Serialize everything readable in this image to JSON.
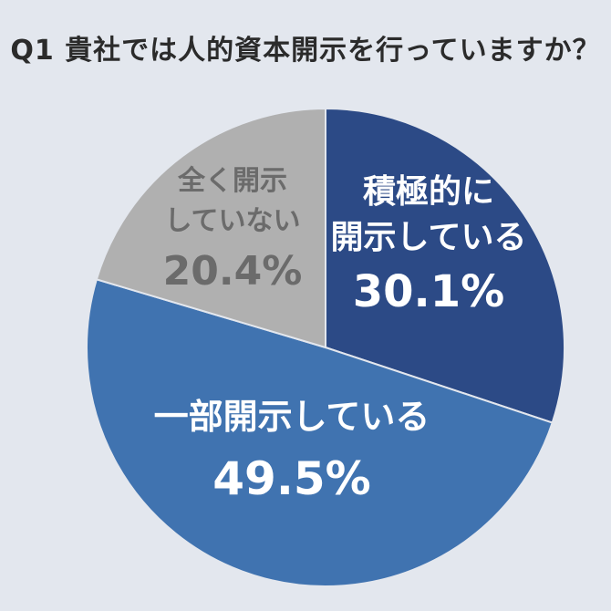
{
  "title": "Q1 貴社では人的資本開示を行っていますか？",
  "chart_data": {
    "type": "pie",
    "title": "Q1 貴社では人的資本開示を行っていますか？",
    "slices": [
      {
        "label_lines": [
          "積極的に",
          "開示している"
        ],
        "value": 30.1,
        "value_text": "30.1%",
        "color": "#2c4a86",
        "text_color": "#ffffff"
      },
      {
        "label_lines": [
          "一部開示している"
        ],
        "value": 49.5,
        "value_text": "49.5%",
        "color": "#4073b0",
        "text_color": "#ffffff"
      },
      {
        "label_lines": [
          "全く開示",
          "していない"
        ],
        "value": 20.4,
        "value_text": "20.4%",
        "color": "#b0b0b0",
        "text_color": "#6b6b6b"
      }
    ],
    "start": "12 o'clock, clockwise"
  }
}
